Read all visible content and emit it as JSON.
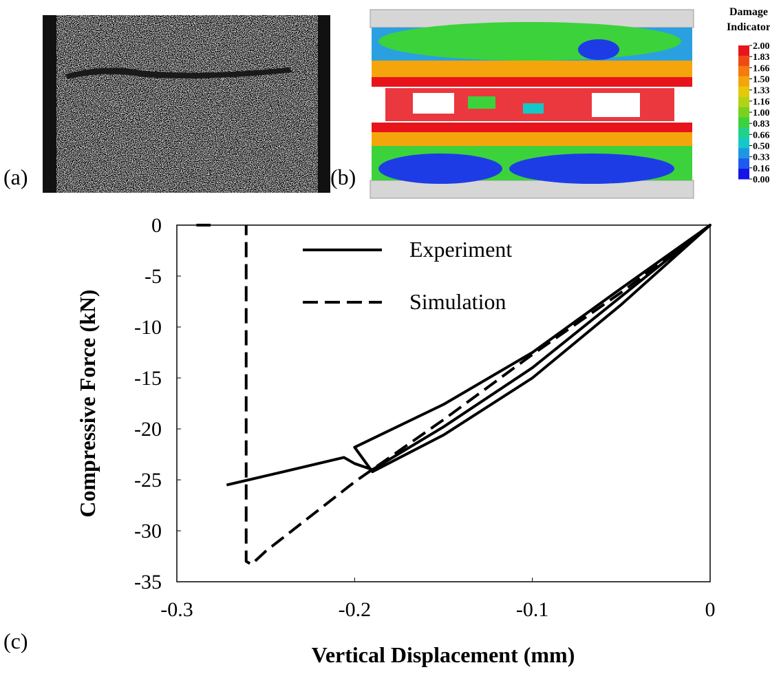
{
  "panel_labels": [
    "(a)",
    "(b)",
    "(c)"
  ],
  "colorbar": {
    "title": [
      "Damage",
      "Indicator"
    ],
    "ticks": [
      {
        "value": 2,
        "label": "2.000"
      },
      {
        "value": 1.833,
        "label": "1.833"
      },
      {
        "value": 1.667,
        "label": "1.667"
      },
      {
        "value": 1.5,
        "label": "1.500"
      },
      {
        "value": 1.333,
        "label": "1.333"
      },
      {
        "value": 1.167,
        "label": "1.167"
      },
      {
        "value": 1,
        "label": "1.000"
      },
      {
        "value": 0.833,
        "label": "0.833"
      },
      {
        "value": 0.667,
        "label": "0.667"
      },
      {
        "value": 0.5,
        "label": "0.500"
      },
      {
        "value": 0.333,
        "label": "0.333"
      },
      {
        "value": 0.167,
        "label": "0.167"
      },
      {
        "value": 0,
        "label": "0.000"
      }
    ],
    "colors": [
      "#e8141c",
      "#f04a14",
      "#f57a10",
      "#f5a50c",
      "#e6c80a",
      "#b4d214",
      "#78d21e",
      "#3cd23c",
      "#1ed28c",
      "#14c8c8",
      "#1e96e6",
      "#1e5af0",
      "#1414e6"
    ]
  },
  "chart_data": {
    "type": "line",
    "xlabel": "Vertical Displacement (mm)",
    "ylabel": "Compressive Force (kN)",
    "xlim": [
      -0.3,
      0
    ],
    "xticks": [
      -0.3,
      -0.2,
      -0.1,
      0
    ],
    "ylim": [
      -35,
      0
    ],
    "yticks": [
      0,
      -5,
      -10,
      -15,
      -20,
      -25,
      -30,
      -35
    ],
    "legend": "upper center",
    "series": [
      {
        "name": "Experiment",
        "color": "#000000",
        "style": "solid",
        "x": [
          0,
          -0.05,
          -0.1,
          -0.15,
          -0.19,
          -0.2,
          -0.15,
          -0.1,
          -0.05,
          0,
          -0.05,
          -0.1,
          -0.15,
          -0.19,
          -0.2,
          -0.206,
          -0.24,
          -0.272
        ],
        "values": [
          0,
          -7.8,
          -15,
          -20.6,
          -24.2,
          -21.8,
          -17.6,
          -12.5,
          -6.2,
          0,
          -7,
          -14,
          -19.8,
          -24,
          -23.4,
          -22.8,
          -24.2,
          -25.5
        ]
      },
      {
        "name": "Simulation",
        "color": "#000000",
        "style": "dashed",
        "x": [
          0,
          -0.05,
          -0.1,
          -0.15,
          -0.2,
          -0.25,
          -0.258,
          -0.261,
          -0.261,
          null,
          -0.281,
          -0.289
        ],
        "values": [
          0,
          -6.6,
          -12.7,
          -19.1,
          -25.2,
          -32,
          -33.3,
          -33,
          0,
          null,
          0,
          0
        ]
      }
    ]
  }
}
